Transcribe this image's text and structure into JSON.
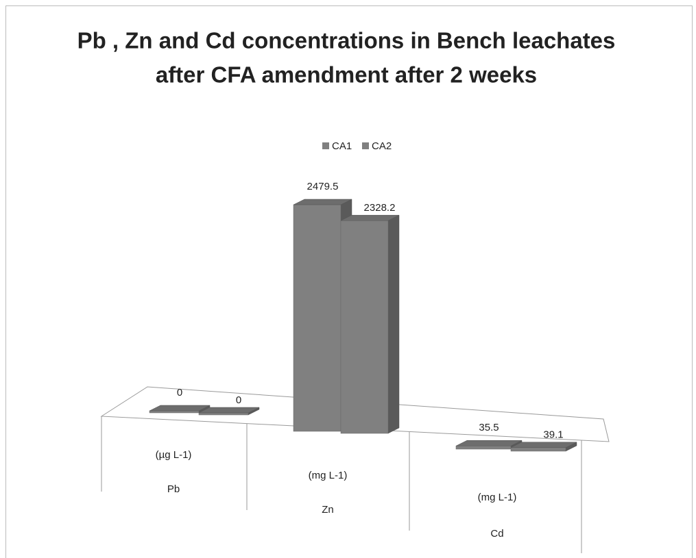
{
  "chart_data": {
    "type": "bar3d",
    "title": [
      "Pb , Zn and Cd concentrations in Bench leachates",
      "after CFA amendment after 2 weeks"
    ],
    "categories": [
      "Pb",
      "Zn",
      "Cd"
    ],
    "units": [
      "(µg L-1)",
      "(mg L-1)",
      "(mg L-1)"
    ],
    "series": [
      {
        "name": "CA1",
        "color": "#808080",
        "values": [
          0,
          2479.5,
          35.5
        ]
      },
      {
        "name": "CA2",
        "color": "#808080",
        "values": [
          0,
          2328.2,
          39.1
        ]
      }
    ],
    "legend": "top"
  }
}
